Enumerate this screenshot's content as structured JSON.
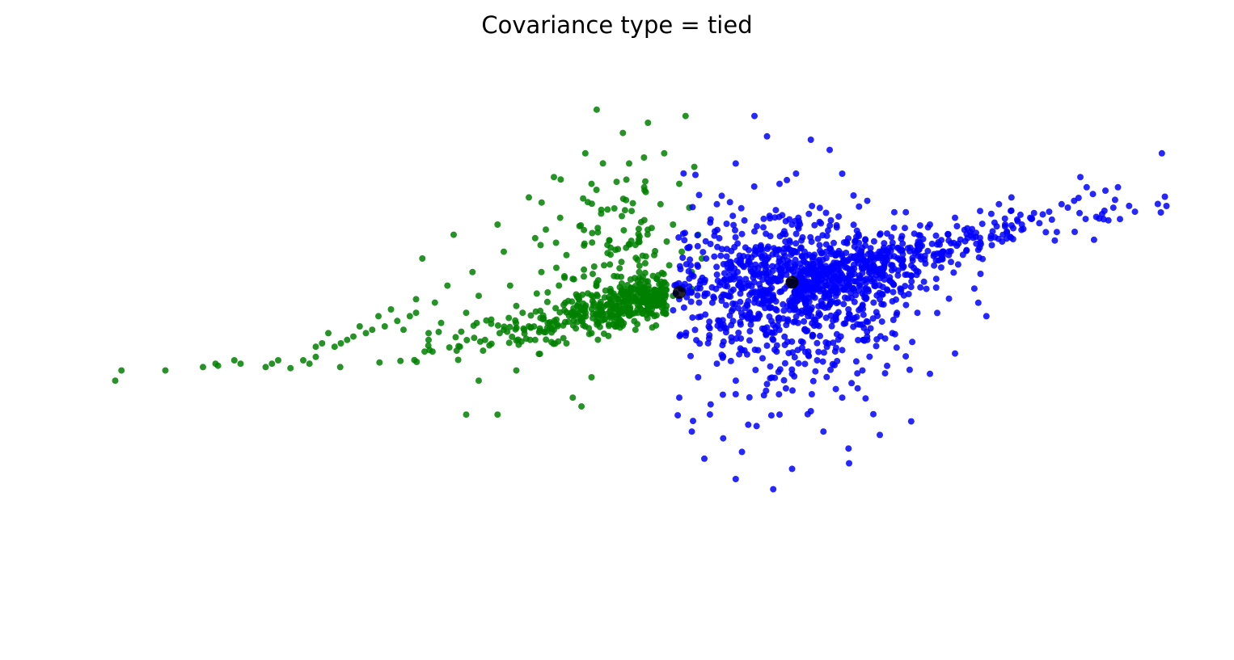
{
  "chart_data": {
    "type": "scatter",
    "title": "Covariance type = tied",
    "xlabel": "",
    "ylabel": "",
    "axes_visible": false,
    "grid": false,
    "legend": "none",
    "xlim": [
      -3.0,
      6.0
    ],
    "ylim": [
      -4.5,
      3.0
    ],
    "marker_size": 4,
    "alpha": 0.85,
    "series": [
      {
        "color": "#008000",
        "count": 620,
        "points": [
          [
            -2.5,
            -1.3
          ],
          [
            -2.45,
            -1.15
          ],
          [
            -2.1,
            -1.15
          ],
          [
            -1.8,
            -1.1
          ],
          [
            -1.7,
            -1.05
          ],
          [
            -1.68,
            -1.08
          ],
          [
            -1.55,
            -1.0
          ],
          [
            -1.5,
            -1.05
          ],
          [
            -1.3,
            -1.1
          ],
          [
            -1.25,
            -1.05
          ],
          [
            -1.2,
            -1.0
          ],
          [
            -1.0,
            -1.0
          ],
          [
            -0.95,
            -1.05
          ],
          [
            -0.9,
            -0.95
          ],
          [
            -0.85,
            -0.75
          ],
          [
            -0.75,
            -0.8
          ],
          [
            -0.65,
            -0.7
          ],
          [
            -0.6,
            -0.65
          ],
          [
            -0.5,
            -0.6
          ],
          [
            -0.35,
            -0.5
          ],
          [
            -0.25,
            -0.42
          ],
          [
            -0.15,
            -0.35
          ],
          [
            -0.9,
            -0.8
          ],
          [
            -0.8,
            -0.6
          ],
          [
            -0.7,
            -0.75
          ],
          [
            -0.55,
            -0.5
          ],
          [
            -0.45,
            -0.55
          ],
          [
            -0.4,
            -0.35
          ],
          [
            -0.3,
            -0.25
          ],
          [
            -0.1,
            -0.3
          ],
          [
            0.05,
            -0.15
          ],
          [
            -0.2,
            -0.55
          ],
          [
            0.0,
            -0.6
          ],
          [
            0.1,
            -0.45
          ],
          [
            -0.05,
            0.5
          ],
          [
            0.2,
            0.85
          ],
          [
            0.35,
            0.3
          ],
          [
            0.4,
            -0.05
          ],
          [
            0.55,
            1.0
          ],
          [
            0.6,
            0.6
          ],
          [
            0.65,
            0.1
          ],
          [
            0.7,
            -0.2
          ],
          [
            0.8,
            1.4
          ],
          [
            0.85,
            0.8
          ],
          [
            0.9,
            0.3
          ],
          [
            0.95,
            0.0
          ],
          [
            1.0,
            1.7
          ],
          [
            1.05,
            1.1
          ],
          [
            1.1,
            0.55
          ],
          [
            1.15,
            0.2
          ],
          [
            1.2,
            -0.1
          ],
          [
            1.25,
            2.05
          ],
          [
            1.3,
            1.6
          ],
          [
            1.35,
            0.95
          ],
          [
            1.4,
            0.4
          ],
          [
            1.45,
            0.05
          ],
          [
            1.5,
            -0.2
          ],
          [
            1.55,
            2.35
          ],
          [
            1.6,
            1.9
          ],
          [
            1.62,
            1.2
          ],
          [
            1.65,
            0.7
          ],
          [
            1.68,
            0.3
          ],
          [
            1.7,
            0.0
          ],
          [
            1.72,
            1.55
          ],
          [
            1.75,
            2.5
          ],
          [
            1.78,
            0.95
          ],
          [
            1.8,
            0.55
          ],
          [
            1.82,
            0.2
          ],
          [
            1.85,
            1.3
          ],
          [
            1.88,
            2.05
          ],
          [
            1.9,
            0.75
          ],
          [
            1.92,
            0.4
          ],
          [
            1.95,
            1.0
          ],
          [
            1.98,
            0.1
          ],
          [
            2.0,
            1.6
          ],
          [
            2.02,
            0.6
          ],
          [
            2.05,
            2.6
          ],
          [
            2.08,
            1.25
          ],
          [
            2.1,
            0.3
          ],
          [
            2.12,
            1.85
          ],
          [
            2.15,
            0.85
          ],
          [
            2.18,
            0.5
          ],
          [
            0.4,
            -1.3
          ],
          [
            0.3,
            -1.8
          ],
          [
            0.55,
            -1.8
          ],
          [
            1.15,
            -1.55
          ],
          [
            1.22,
            -1.68
          ],
          [
            1.3,
            -1.25
          ],
          [
            0.85,
            -0.7
          ],
          [
            0.7,
            -1.15
          ],
          [
            1.1,
            -0.75
          ],
          [
            1.3,
            -0.6
          ],
          [
            1.5,
            -0.5
          ],
          [
            1.65,
            -0.55
          ],
          [
            -0.1,
            -0.1
          ],
          [
            0.15,
            0.1
          ],
          [
            0.3,
            -0.3
          ],
          [
            0.5,
            -0.4
          ],
          [
            0.75,
            -0.3
          ],
          [
            0.95,
            -0.45
          ],
          [
            1.15,
            -0.35
          ],
          [
            1.4,
            -0.4
          ],
          [
            1.6,
            -0.3
          ],
          [
            1.8,
            -0.15
          ],
          [
            1.95,
            -0.05
          ],
          [
            2.1,
            0.05
          ],
          [
            0.0,
            -0.7
          ],
          [
            0.25,
            -0.8
          ],
          [
            0.45,
            -0.7
          ],
          [
            0.6,
            -0.55
          ],
          [
            0.8,
            -0.5
          ],
          [
            1.0,
            -0.55
          ]
        ]
      },
      {
        "color": "#0000ff",
        "count": 1380,
        "points": [
          [
            5.85,
            2.05
          ],
          [
            5.2,
            1.7
          ],
          [
            5.25,
            1.55
          ],
          [
            4.65,
            1.4
          ],
          [
            4.55,
            1.3
          ],
          [
            4.4,
            1.2
          ],
          [
            4.2,
            1.1
          ],
          [
            4.0,
            1.0
          ],
          [
            3.8,
            0.95
          ],
          [
            3.6,
            0.85
          ],
          [
            3.4,
            0.75
          ],
          [
            3.2,
            0.65
          ],
          [
            3.0,
            0.6
          ],
          [
            2.8,
            0.5
          ],
          [
            2.6,
            0.35
          ],
          [
            2.4,
            0.25
          ],
          [
            2.2,
            0.15
          ],
          [
            2.0,
            -0.1
          ],
          [
            2.3,
            1.3
          ],
          [
            2.45,
            1.9
          ],
          [
            2.6,
            2.6
          ],
          [
            2.7,
            2.3
          ],
          [
            2.8,
            1.6
          ],
          [
            2.95,
            1.1
          ],
          [
            3.05,
            2.25
          ],
          [
            3.2,
            2.1
          ],
          [
            3.3,
            1.75
          ],
          [
            3.5,
            1.35
          ],
          [
            3.7,
            0.4
          ],
          [
            3.9,
            -0.3
          ],
          [
            4.05,
            0.2
          ],
          [
            4.15,
            0.55
          ],
          [
            3.55,
            -0.15
          ],
          [
            3.25,
            -0.4
          ],
          [
            3.0,
            -0.55
          ],
          [
            2.75,
            -0.7
          ],
          [
            2.5,
            -0.85
          ],
          [
            2.3,
            -1.05
          ],
          [
            2.15,
            -1.25
          ],
          [
            2.0,
            -1.55
          ],
          [
            2.25,
            -1.65
          ],
          [
            2.45,
            -1.5
          ],
          [
            2.7,
            -1.35
          ],
          [
            2.9,
            -1.2
          ],
          [
            3.1,
            -1.0
          ],
          [
            3.3,
            -0.85
          ],
          [
            3.5,
            -0.7
          ],
          [
            3.7,
            -0.6
          ],
          [
            2.1,
            -2.05
          ],
          [
            2.35,
            -2.15
          ],
          [
            2.55,
            -1.95
          ],
          [
            2.8,
            -1.8
          ],
          [
            3.05,
            -1.75
          ],
          [
            3.3,
            -1.55
          ],
          [
            2.2,
            -2.45
          ],
          [
            2.5,
            -2.35
          ],
          [
            2.9,
            -2.6
          ],
          [
            3.35,
            -2.3
          ],
          [
            3.6,
            -2.1
          ],
          [
            3.85,
            -1.9
          ],
          [
            2.75,
            -2.9
          ],
          [
            2.45,
            -2.75
          ],
          [
            3.15,
            -2.05
          ],
          [
            4.0,
            -1.2
          ],
          [
            4.2,
            -0.9
          ],
          [
            4.45,
            -0.35
          ],
          [
            2.6,
            0.9
          ],
          [
            2.85,
            1.05
          ],
          [
            3.1,
            0.3
          ],
          [
            3.35,
            0.1
          ],
          [
            3.6,
            -0.1
          ],
          [
            3.85,
            0.25
          ],
          [
            4.3,
            0.8
          ],
          [
            4.5,
            0.9
          ],
          [
            4.7,
            1.05
          ],
          [
            4.9,
            1.15
          ],
          [
            5.05,
            1.3
          ],
          [
            5.15,
            1.35
          ],
          [
            5.3,
            1.45
          ],
          [
            5.4,
            1.5
          ],
          [
            5.5,
            1.55
          ],
          [
            5.1,
            1.25
          ],
          [
            4.8,
            1.1
          ],
          [
            4.6,
            1.0
          ]
        ]
      },
      {
        "name": "",
        "color": "#000000",
        "role": "means",
        "points": [
          [
            2.0,
            0.0
          ],
          [
            2.9,
            0.15
          ]
        ]
      }
    ]
  }
}
